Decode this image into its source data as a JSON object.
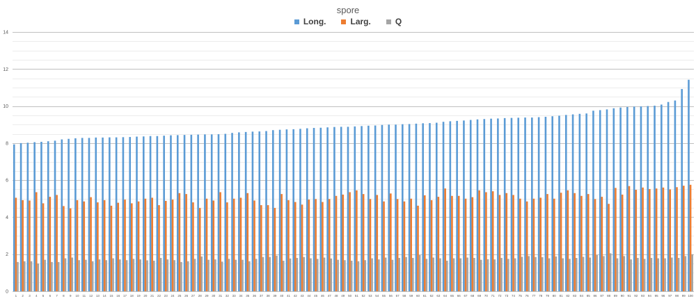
{
  "chart_data": {
    "type": "bar",
    "title": "spore",
    "legend_position": "top",
    "grid": true,
    "ylim": [
      0,
      14
    ],
    "y_ticks": [
      0,
      2,
      4,
      6,
      8,
      10,
      12,
      14
    ],
    "categories": [
      "1",
      "2",
      "3",
      "4",
      "5",
      "6",
      "7",
      "8",
      "9",
      "10",
      "11",
      "12",
      "13",
      "14",
      "15",
      "16",
      "17",
      "18",
      "19",
      "20",
      "21",
      "22",
      "23",
      "24",
      "25",
      "26",
      "27",
      "28",
      "29",
      "30",
      "31",
      "32",
      "33",
      "34",
      "35",
      "36",
      "37",
      "38",
      "39",
      "40",
      "41",
      "42",
      "43",
      "44",
      "45",
      "46",
      "47",
      "48",
      "49",
      "50",
      "51",
      "52",
      "53",
      "54",
      "55",
      "56",
      "57",
      "58",
      "59",
      "60",
      "61",
      "62",
      "63",
      "64",
      "65",
      "66",
      "67",
      "68",
      "69",
      "70",
      "71",
      "72",
      "73",
      "74",
      "75",
      "76",
      "77",
      "78",
      "79",
      "80",
      "81",
      "82",
      "83",
      "84",
      "85",
      "86",
      "87",
      "88",
      "89",
      "90",
      "91",
      "92",
      "93",
      "94",
      "95",
      "96",
      "97",
      "98",
      "99",
      "100"
    ],
    "series": [
      {
        "name": "Long.",
        "color": "#5b9bd5",
        "values": [
          7.93,
          8.0,
          8.02,
          8.05,
          8.07,
          8.1,
          8.13,
          8.2,
          8.23,
          8.26,
          8.28,
          8.28,
          8.3,
          8.3,
          8.31,
          8.31,
          8.32,
          8.33,
          8.35,
          8.36,
          8.38,
          8.38,
          8.4,
          8.42,
          8.43,
          8.44,
          8.45,
          8.46,
          8.47,
          8.47,
          8.48,
          8.5,
          8.55,
          8.58,
          8.6,
          8.62,
          8.63,
          8.65,
          8.7,
          8.72,
          8.74,
          8.75,
          8.77,
          8.8,
          8.82,
          8.83,
          8.85,
          8.87,
          8.88,
          8.88,
          8.9,
          8.92,
          8.94,
          8.95,
          8.98,
          9.0,
          9.0,
          9.02,
          9.03,
          9.05,
          9.07,
          9.08,
          9.1,
          9.15,
          9.18,
          9.2,
          9.22,
          9.25,
          9.28,
          9.3,
          9.32,
          9.33,
          9.35,
          9.36,
          9.37,
          9.38,
          9.38,
          9.4,
          9.42,
          9.45,
          9.48,
          9.52,
          9.55,
          9.58,
          9.6,
          9.75,
          9.78,
          9.82,
          9.88,
          9.92,
          9.95,
          9.97,
          9.98,
          10.0,
          10.02,
          10.08,
          10.22,
          10.3,
          10.92,
          11.42
        ]
      },
      {
        "name": "Larg.",
        "color": "#ed7d31",
        "values": [
          5.05,
          4.92,
          4.9,
          5.35,
          4.75,
          5.1,
          5.2,
          4.6,
          4.48,
          4.92,
          4.85,
          5.08,
          4.8,
          4.92,
          4.62,
          4.78,
          4.95,
          4.75,
          4.85,
          5.0,
          5.05,
          4.65,
          4.88,
          4.95,
          5.3,
          5.25,
          4.8,
          4.5,
          5.0,
          4.9,
          5.35,
          4.8,
          5.0,
          5.05,
          5.3,
          4.9,
          4.65,
          4.65,
          4.5,
          5.25,
          4.92,
          4.82,
          4.68,
          4.95,
          4.98,
          4.82,
          4.98,
          5.15,
          5.22,
          5.35,
          5.45,
          5.25,
          4.98,
          5.2,
          4.85,
          5.28,
          4.98,
          4.85,
          5.0,
          4.62,
          5.18,
          4.92,
          5.1,
          5.55,
          5.15,
          5.15,
          5.0,
          5.08,
          5.45,
          5.35,
          5.4,
          5.2,
          5.3,
          5.2,
          5.0,
          4.85,
          5.0,
          5.05,
          5.25,
          5.0,
          5.32,
          5.45,
          5.3,
          5.15,
          5.25,
          4.98,
          5.1,
          4.72,
          5.58,
          5.22,
          5.68,
          5.48,
          5.6,
          5.52,
          5.55,
          5.6,
          5.5,
          5.62,
          5.7,
          5.75
        ]
      },
      {
        "name": "Q",
        "color": "#a5a5a5",
        "values": [
          1.58,
          1.62,
          1.62,
          1.5,
          1.7,
          1.58,
          1.58,
          1.78,
          1.82,
          1.68,
          1.7,
          1.62,
          1.72,
          1.68,
          1.78,
          1.72,
          1.68,
          1.75,
          1.72,
          1.67,
          1.65,
          1.8,
          1.72,
          1.68,
          1.58,
          1.62,
          1.75,
          1.88,
          1.7,
          1.72,
          1.6,
          1.75,
          1.7,
          1.7,
          1.62,
          1.75,
          1.85,
          1.85,
          1.92,
          1.65,
          1.77,
          1.8,
          1.85,
          1.78,
          1.75,
          1.82,
          1.77,
          1.7,
          1.68,
          1.65,
          1.62,
          1.68,
          1.78,
          1.72,
          1.82,
          1.7,
          1.8,
          1.85,
          1.8,
          1.95,
          1.75,
          1.82,
          1.78,
          1.65,
          1.78,
          1.78,
          1.82,
          1.8,
          1.7,
          1.73,
          1.72,
          1.8,
          1.75,
          1.78,
          1.86,
          1.9,
          1.85,
          1.84,
          1.78,
          1.88,
          1.78,
          1.75,
          1.8,
          1.86,
          1.82,
          1.95,
          1.9,
          2.05,
          1.78,
          1.9,
          1.72,
          1.8,
          1.75,
          1.8,
          1.78,
          1.78,
          1.82,
          1.8,
          1.9,
          2.0
        ]
      }
    ]
  }
}
